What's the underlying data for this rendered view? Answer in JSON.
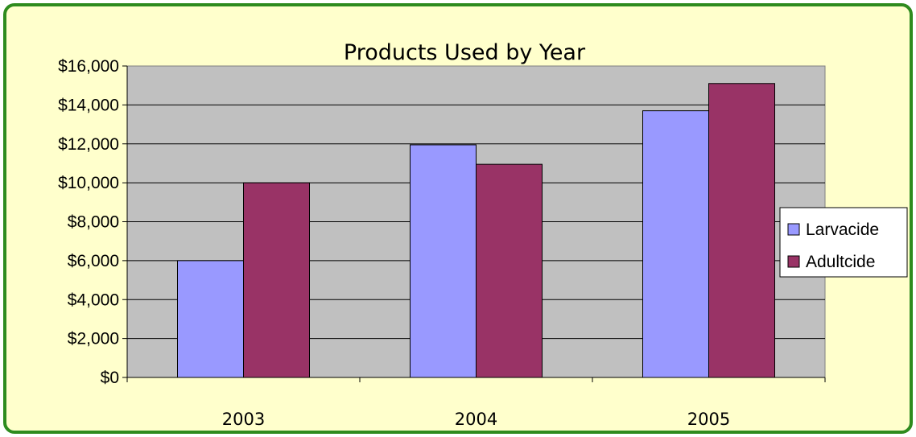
{
  "chart_data": {
    "type": "bar",
    "title": "Products Used by Year",
    "xlabel": "",
    "ylabel": "",
    "categories": [
      "2003",
      "2004",
      "2005"
    ],
    "series": [
      {
        "name": "Larvacide",
        "values": [
          6000,
          11950,
          13700
        ],
        "color": "#9999ff"
      },
      {
        "name": "Adultcide",
        "values": [
          10000,
          10950,
          15100
        ],
        "color": "#993366"
      }
    ],
    "ylim": [
      0,
      16000
    ],
    "ytick_step": 2000,
    "y_tick_labels": [
      "$0",
      "$2,000",
      "$4,000",
      "$6,000",
      "$8,000",
      "$10,000",
      "$12,000",
      "$14,000",
      "$16,000"
    ],
    "grid": true,
    "legend_position": "right",
    "plot_background": "#c0c0c0",
    "frame_background": "#ffffcc",
    "frame_border": "#2e8b1e"
  }
}
